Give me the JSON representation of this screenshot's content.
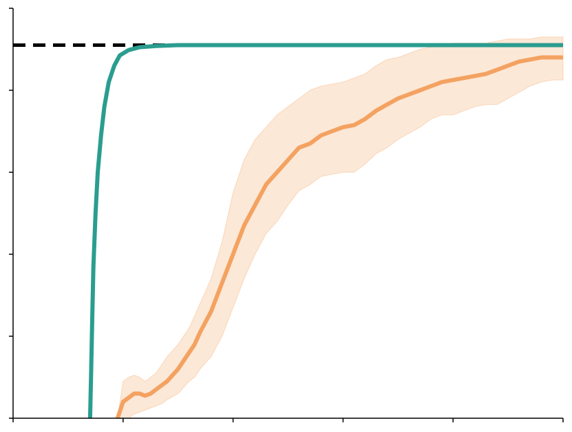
{
  "chart_data": {
    "type": "line",
    "title": "",
    "xlabel": "",
    "ylabel": "",
    "xlim": [
      0,
      5
    ],
    "ylim": [
      0,
      1
    ],
    "x_ticks": [
      0,
      1,
      2,
      3,
      4,
      5
    ],
    "y_ticks": [
      0,
      0.2,
      0.4,
      0.6,
      0.8,
      1.0
    ],
    "grid": false,
    "legend": "none",
    "reference_line": {
      "y": 0.91,
      "style": "dashed",
      "color": "#000000"
    },
    "series": [
      {
        "color": "#2a9d8f",
        "x": [
          0.7,
          0.71,
          0.72,
          0.73,
          0.75,
          0.77,
          0.8,
          0.83,
          0.87,
          0.92,
          0.97,
          1.05,
          1.15,
          1.3,
          1.5,
          2.0,
          3.0,
          4.0,
          5.0
        ],
        "y": [
          0.0,
          0.12,
          0.25,
          0.37,
          0.5,
          0.6,
          0.69,
          0.76,
          0.82,
          0.86,
          0.885,
          0.898,
          0.905,
          0.908,
          0.91,
          0.91,
          0.91,
          0.91,
          0.91
        ]
      },
      {
        "color": "#f4a261",
        "x": [
          0.95,
          1.0,
          1.05,
          1.1,
          1.15,
          1.2,
          1.25,
          1.3,
          1.35,
          1.4,
          1.5,
          1.6,
          1.65,
          1.7,
          1.8,
          1.9,
          2.0,
          2.1,
          2.2,
          2.3,
          2.4,
          2.5,
          2.6,
          2.7,
          2.8,
          2.9,
          3.0,
          3.1,
          3.2,
          3.3,
          3.4,
          3.5,
          3.6,
          3.7,
          3.8,
          3.9,
          4.0,
          4.1,
          4.2,
          4.3,
          4.4,
          4.5,
          4.6,
          4.7,
          4.8,
          4.9,
          5.0
        ],
        "y": [
          0.0,
          0.04,
          0.05,
          0.06,
          0.06,
          0.055,
          0.06,
          0.07,
          0.08,
          0.09,
          0.12,
          0.16,
          0.18,
          0.21,
          0.26,
          0.33,
          0.4,
          0.47,
          0.52,
          0.57,
          0.6,
          0.63,
          0.66,
          0.67,
          0.69,
          0.7,
          0.71,
          0.715,
          0.73,
          0.75,
          0.765,
          0.78,
          0.79,
          0.8,
          0.81,
          0.82,
          0.825,
          0.83,
          0.835,
          0.84,
          0.85,
          0.86,
          0.87,
          0.875,
          0.88,
          0.88,
          0.88
        ],
        "lower": [
          0.0,
          0.0,
          0.0,
          0.01,
          0.015,
          0.02,
          0.025,
          0.03,
          0.035,
          0.045,
          0.06,
          0.09,
          0.1,
          0.12,
          0.15,
          0.2,
          0.27,
          0.34,
          0.4,
          0.45,
          0.48,
          0.52,
          0.555,
          0.57,
          0.59,
          0.595,
          0.6,
          0.6,
          0.62,
          0.645,
          0.66,
          0.68,
          0.695,
          0.71,
          0.73,
          0.74,
          0.74,
          0.75,
          0.76,
          0.765,
          0.765,
          0.78,
          0.795,
          0.81,
          0.82,
          0.825,
          0.825
        ],
        "upper": [
          0.0,
          0.09,
          0.1,
          0.105,
          0.1,
          0.09,
          0.1,
          0.11,
          0.13,
          0.15,
          0.18,
          0.22,
          0.25,
          0.28,
          0.34,
          0.43,
          0.55,
          0.63,
          0.68,
          0.71,
          0.74,
          0.76,
          0.78,
          0.8,
          0.81,
          0.815,
          0.82,
          0.83,
          0.84,
          0.86,
          0.875,
          0.88,
          0.89,
          0.9,
          0.905,
          0.91,
          0.915,
          0.915,
          0.915,
          0.915,
          0.92,
          0.925,
          0.925,
          0.925,
          0.93,
          0.93,
          0.93
        ]
      }
    ]
  }
}
